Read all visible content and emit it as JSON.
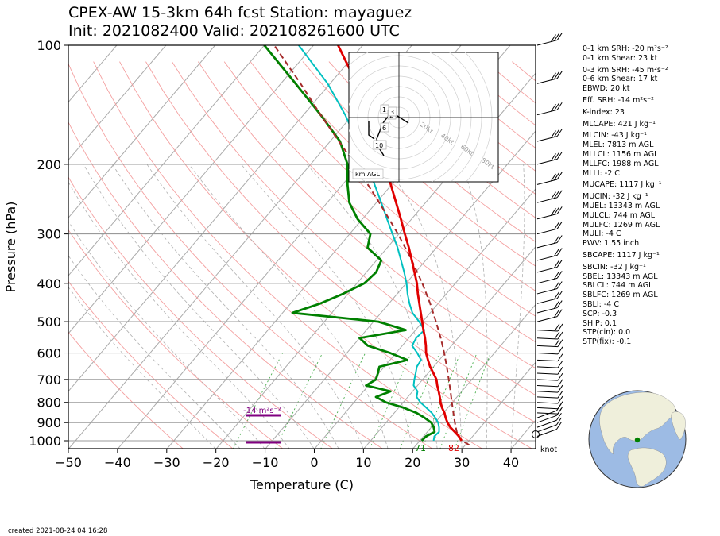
{
  "title_line1": "CPEX-AW 15-3km  64h fcst  Station: mayaguez",
  "title_line2": "Init: 2021082400  Valid: 202108261600 UTC",
  "created": "created 2021-08-24 04:16:28",
  "colors": {
    "temperature": "#e00000",
    "dewpoint": "#008000",
    "wetbulb": "#00c0c0",
    "parcel": "#a52a2a",
    "dry_adiabat": "#f4a0a0",
    "moist_adiabat": "#b0b0b0",
    "mixing_ratio": "#4caf50",
    "srh_bar": "#800080"
  },
  "chart_data": {
    "type": "line",
    "subtype": "skew-T log-p diagram",
    "xlabel": "Temperature (C)",
    "ylabel": "Pressure (hPa)",
    "xlim": [
      -50,
      45
    ],
    "ylim": [
      1050,
      100
    ],
    "y_scale": "log",
    "x_ticks": [
      -50,
      -40,
      -30,
      -20,
      -10,
      0,
      10,
      20,
      30,
      40
    ],
    "x_tick_labels": [
      "−50",
      "−40",
      "−30",
      "−20",
      "−10",
      "0",
      "10",
      "20",
      "30",
      "40"
    ],
    "y_ticks": [
      1000,
      900,
      800,
      700,
      600,
      500,
      400,
      300,
      200,
      100
    ],
    "grid": true,
    "series": [
      {
        "key": "temperature",
        "points": [
          [
            1000,
            28.5
          ],
          [
            975,
            27.2
          ],
          [
            950,
            25.6
          ],
          [
            925,
            23.9
          ],
          [
            900,
            22.5
          ],
          [
            875,
            21.3
          ],
          [
            850,
            20.2
          ],
          [
            825,
            18.8
          ],
          [
            800,
            17.6
          ],
          [
            775,
            16.5
          ],
          [
            750,
            15.3
          ],
          [
            725,
            14.0
          ],
          [
            700,
            12.8
          ],
          [
            675,
            11.1
          ],
          [
            650,
            9.3
          ],
          [
            625,
            7.7
          ],
          [
            600,
            6.1
          ],
          [
            575,
            4.8
          ],
          [
            550,
            3.3
          ],
          [
            525,
            1.6
          ],
          [
            500,
            -0.1
          ],
          [
            475,
            -1.9
          ],
          [
            450,
            -3.8
          ],
          [
            425,
            -5.8
          ],
          [
            400,
            -7.8
          ],
          [
            375,
            -10.2
          ],
          [
            350,
            -12.8
          ],
          [
            325,
            -15.6
          ],
          [
            300,
            -18.8
          ],
          [
            275,
            -22.2
          ],
          [
            250,
            -26.0
          ],
          [
            225,
            -30.2
          ],
          [
            200,
            -35.0
          ],
          [
            175,
            -40.5
          ],
          [
            150,
            -46.8
          ],
          [
            125,
            -54.6
          ],
          [
            100,
            -65.0
          ]
        ]
      },
      {
        "key": "dewpoint",
        "points": [
          [
            1000,
            20.4
          ],
          [
            975,
            20.5
          ],
          [
            950,
            21.5
          ],
          [
            925,
            20.5
          ],
          [
            900,
            19.2
          ],
          [
            875,
            17.0
          ],
          [
            850,
            14.5
          ],
          [
            825,
            11.0
          ],
          [
            800,
            6.5
          ],
          [
            775,
            3.5
          ],
          [
            750,
            5.5
          ],
          [
            725,
            -0.5
          ],
          [
            700,
            0.5
          ],
          [
            675,
            -0.2
          ],
          [
            650,
            -1.0
          ],
          [
            625,
            3.5
          ],
          [
            600,
            -1.2
          ],
          [
            575,
            -7.0
          ],
          [
            550,
            -10.0
          ],
          [
            525,
            -2.0
          ],
          [
            500,
            -9.0
          ],
          [
            475,
            -28.0
          ],
          [
            450,
            -24.0
          ],
          [
            425,
            -21.0
          ],
          [
            400,
            -18.5
          ],
          [
            375,
            -18.0
          ],
          [
            350,
            -19.0
          ],
          [
            325,
            -24.0
          ],
          [
            300,
            -25.8
          ],
          [
            275,
            -31.0
          ],
          [
            250,
            -35.5
          ],
          [
            225,
            -39.0
          ],
          [
            200,
            -42.5
          ],
          [
            175,
            -48.0
          ],
          [
            150,
            -56.5
          ],
          [
            125,
            -67.0
          ],
          [
            100,
            -80.0
          ]
        ]
      },
      {
        "key": "wetbulb",
        "points": [
          [
            1000,
            22.8
          ],
          [
            975,
            22.2
          ],
          [
            950,
            22.4
          ],
          [
            925,
            21.6
          ],
          [
            900,
            20.6
          ],
          [
            875,
            19.2
          ],
          [
            850,
            17.6
          ],
          [
            825,
            15.6
          ],
          [
            800,
            13.5
          ],
          [
            775,
            11.8
          ],
          [
            750,
            11.0
          ],
          [
            725,
            9.2
          ],
          [
            700,
            8.3
          ],
          [
            675,
            7.5
          ],
          [
            650,
            6.6
          ],
          [
            625,
            6.3
          ],
          [
            600,
            4.3
          ],
          [
            575,
            2.0
          ],
          [
            550,
            1.5
          ],
          [
            525,
            1.8
          ],
          [
            500,
            -0.7
          ],
          [
            475,
            -3.6
          ],
          [
            450,
            -5.8
          ],
          [
            425,
            -7.9
          ],
          [
            400,
            -9.9
          ],
          [
            375,
            -12.3
          ],
          [
            350,
            -15.0
          ],
          [
            325,
            -17.9
          ],
          [
            300,
            -21.3
          ],
          [
            275,
            -25.0
          ],
          [
            250,
            -29.0
          ],
          [
            225,
            -33.5
          ],
          [
            200,
            -38.5
          ],
          [
            175,
            -44.5
          ],
          [
            150,
            -51.5
          ],
          [
            125,
            -60.5
          ],
          [
            100,
            -73.0
          ]
        ]
      },
      {
        "key": "parcel",
        "points": [
          [
            1025,
            30.8
          ],
          [
            1000,
            28.6
          ],
          [
            975,
            27.1
          ],
          [
            950,
            26.0
          ],
          [
            925,
            25.0
          ],
          [
            900,
            24.0
          ],
          [
            850,
            22.0
          ],
          [
            800,
            19.9
          ],
          [
            750,
            17.7
          ],
          [
            700,
            15.3
          ],
          [
            650,
            12.7
          ],
          [
            600,
            9.8
          ],
          [
            550,
            6.5
          ],
          [
            500,
            2.7
          ],
          [
            450,
            -1.6
          ],
          [
            400,
            -6.7
          ],
          [
            350,
            -12.8
          ],
          [
            300,
            -20.2
          ],
          [
            250,
            -29.4
          ],
          [
            200,
            -41.0
          ],
          [
            150,
            -56.5
          ],
          [
            125,
            -66.0
          ],
          [
            100,
            -78.0
          ]
        ]
      }
    ],
    "annotations": {
      "surface_temperature_label": "82",
      "surface_dewpoint_label": "71",
      "srh_bar_label": "-14 m²s⁻²",
      "wind_unit_label": "knot"
    }
  },
  "hodograph": {
    "ring_labels": [
      "20kt",
      "40kt",
      "60kt",
      "80kt"
    ],
    "height_labels": [
      "1",
      "2",
      "3",
      "6",
      "10"
    ],
    "axis_label": "km AGL"
  },
  "stats": [
    "0-1 km SRH: -20 m²s⁻²",
    "0-1 km Shear: 23 kt",
    "0-3 km SRH: -45 m²s⁻²",
    "0-6 km Shear: 17 kt",
    "EBWD: 20 kt",
    "Eff. SRH: -14 m²s⁻²",
    "K-index: 23",
    "MLCAPE: 421 J kg⁻¹",
    "MLCIN: -43 J kg⁻¹",
    "MLEL: 7813 m AGL",
    "MLLCL: 1156 m AGL",
    "MLLFC: 1988 m AGL",
    "MLLI: -2 C",
    "MUCAPE: 1117 J kg⁻¹",
    "MUCIN: -32 J kg⁻¹",
    "MUEL: 13343 m AGL",
    "MULCL: 744 m AGL",
    "MULFC: 1269 m AGL",
    "MULI: -4 C",
    "PWV: 1.55 inch",
    "SBCAPE: 1117 J kg⁻¹",
    "SBCIN: -32 J kg⁻¹",
    "SBEL: 13343 m AGL",
    "SBLCL: 744 m AGL",
    "SBLFC: 1269 m AGL",
    "SBLI: -4 C",
    "SCP: -0.3",
    "SHIP: 0.1",
    "STP(cin): 0.0",
    "STP(fix): -0.1"
  ]
}
